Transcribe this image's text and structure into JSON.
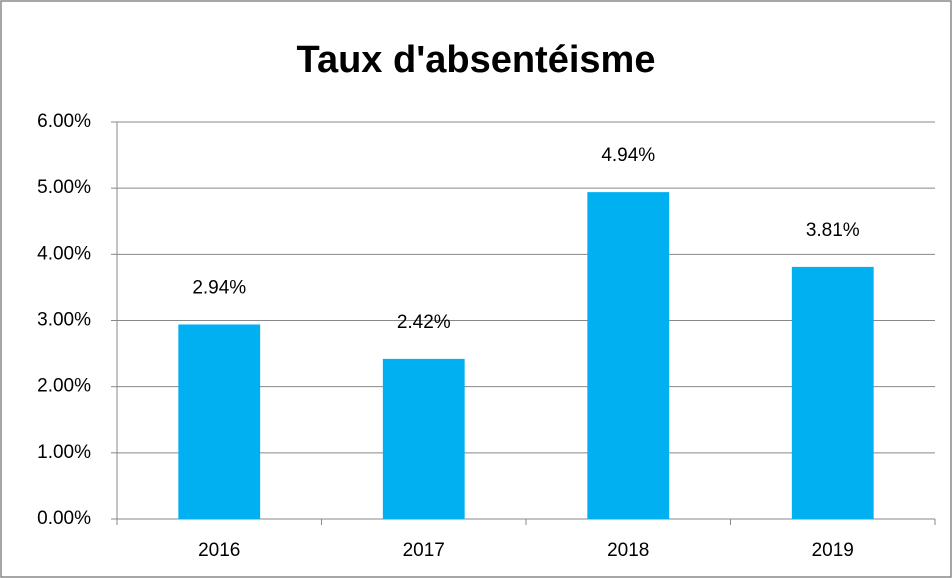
{
  "chart_data": {
    "type": "bar",
    "title": "Taux d'absentéisme",
    "categories": [
      "2016",
      "2017",
      "2018",
      "2019"
    ],
    "values": [
      2.94,
      2.42,
      4.94,
      3.81
    ],
    "value_labels": [
      "2.94%",
      "2.42%",
      "4.94%",
      "3.81%"
    ],
    "color": "#00b0f0",
    "ylim": [
      0,
      6
    ],
    "yticks": [
      {
        "value": 0,
        "label": "0.00%"
      },
      {
        "value": 1,
        "label": "1.00%"
      },
      {
        "value": 2,
        "label": "2.00%"
      },
      {
        "value": 3,
        "label": "3.00%"
      },
      {
        "value": 4,
        "label": "4.00%"
      },
      {
        "value": 5,
        "label": "5.00%"
      },
      {
        "value": 6,
        "label": "6.00%"
      }
    ],
    "grid": true
  }
}
